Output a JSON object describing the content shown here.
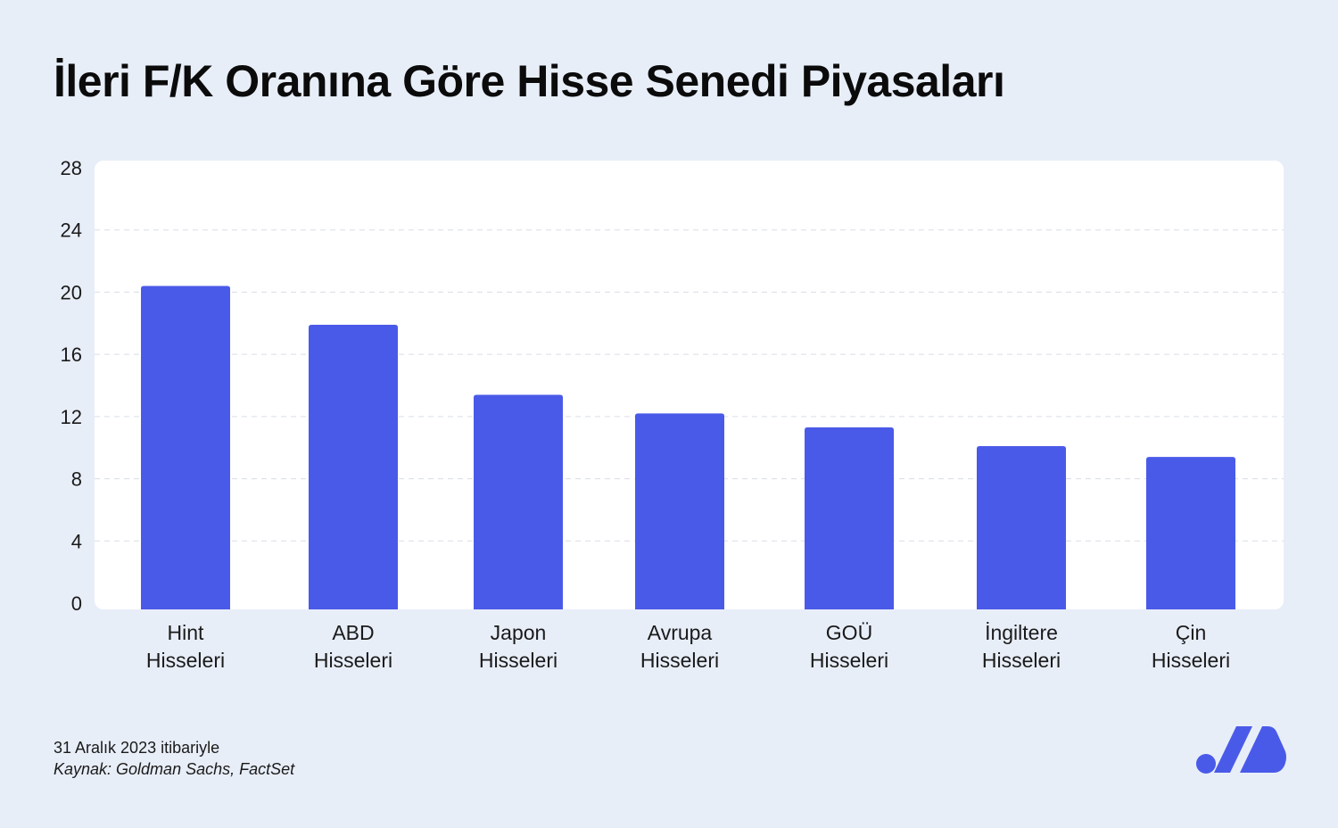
{
  "title": "İleri F/K Oranına Göre Hisse Senedi Piyasaları",
  "footnote": {
    "date": "31 Aralık 2023 itibariyle",
    "source": "Kaynak: Goldman Sachs, FactSet"
  },
  "colors": {
    "background": "#e8eef8",
    "plot_background": "#ffffff",
    "bar": "#4a5ae8",
    "logo": "#4a5ae8",
    "grid": "#d9dde6",
    "text": "#1a1a1a"
  },
  "logo": {
    "icon": "brand-logo-icon"
  },
  "chart_data": {
    "type": "bar",
    "title": "İleri F/K Oranına Göre Hisse Senedi Piyasaları",
    "xlabel": "",
    "ylabel": "",
    "categories": [
      [
        "Hint",
        "Hisseleri"
      ],
      [
        "ABD",
        "Hisseleri"
      ],
      [
        "Japon",
        "Hisseleri"
      ],
      [
        "Avrupa",
        "Hisseleri"
      ],
      [
        "GOÜ",
        "Hisseleri"
      ],
      [
        "İngiltere",
        "Hisseleri"
      ],
      [
        "Çin",
        "Hisseleri"
      ]
    ],
    "values": [
      20.4,
      17.9,
      13.4,
      12.2,
      11.3,
      10.1,
      9.4
    ],
    "ylim": [
      0,
      28
    ],
    "yticks": [
      "0",
      "4",
      "8",
      "12",
      "16",
      "20",
      "24",
      "28"
    ],
    "grid": true,
    "legend": "none"
  }
}
